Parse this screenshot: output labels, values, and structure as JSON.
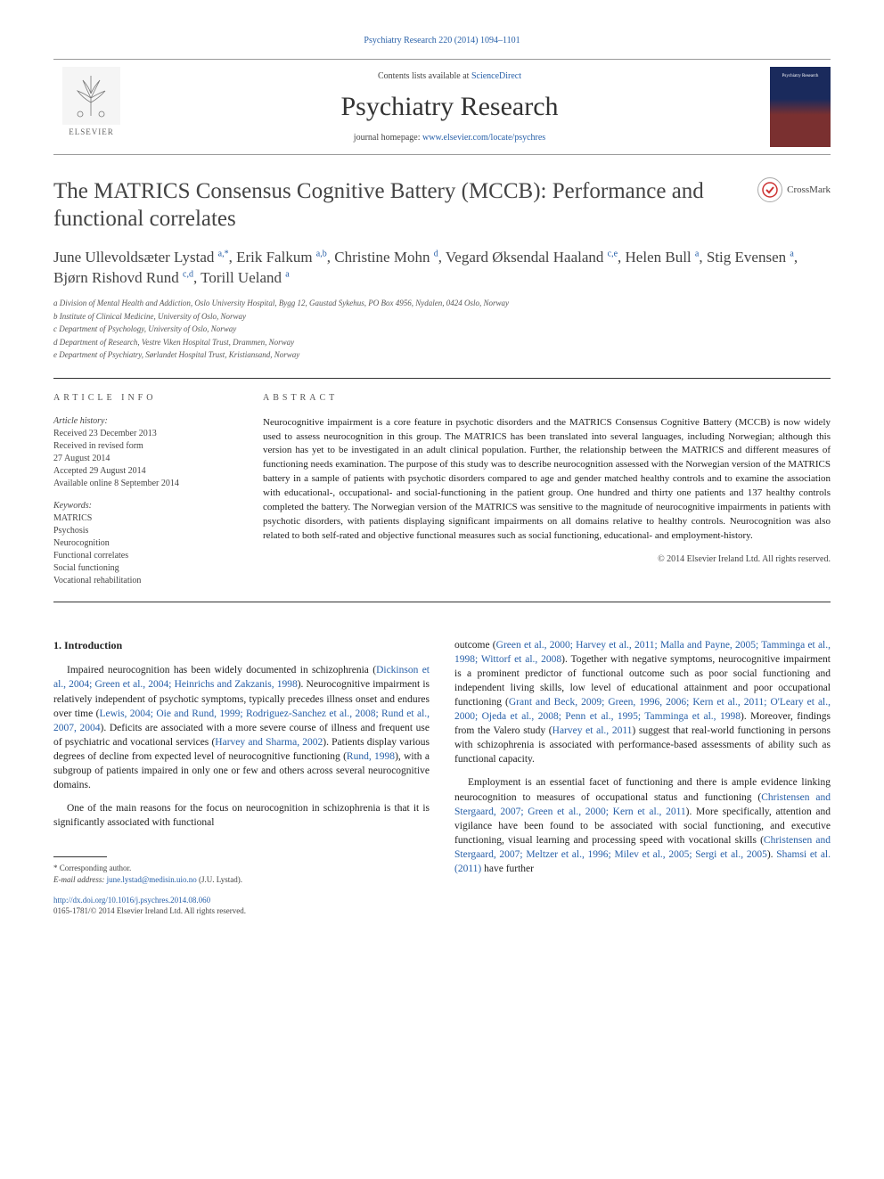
{
  "top_link": "Psychiatry Research 220 (2014) 1094–1101",
  "header": {
    "contents_prefix": "Contents lists available at ",
    "contents_link": "ScienceDirect",
    "journal_title": "Psychiatry Research",
    "homepage_prefix": "journal homepage: ",
    "homepage_link": "www.elsevier.com/locate/psychres",
    "elsevier_label": "ELSEVIER",
    "cover_text": "Psychiatry Research"
  },
  "crossmark_label": "CrossMark",
  "article_title": "The MATRICS Consensus Cognitive Battery (MCCB): Performance and functional correlates",
  "authors_html": "June Ullevoldsæter Lystad <sup><a>a,</a></sup><sup class=\"star\">*</sup>, Erik Falkum <sup><a>a,b</a></sup>, Christine Mohn <sup><a>d</a></sup>, Vegard Øksendal Haaland <sup><a>c,e</a></sup>, Helen Bull <sup><a>a</a></sup>, Stig Evensen <sup><a>a</a></sup>, Bjørn Rishovd Rund <sup><a>c,d</a></sup>, Torill Ueland <sup><a>a</a></sup>",
  "affiliations": [
    "a Division of Mental Health and Addiction, Oslo University Hospital, Bygg 12, Gaustad Sykehus, PO Box 4956, Nydalen, 0424 Oslo, Norway",
    "b Institute of Clinical Medicine, University of Oslo, Norway",
    "c Department of Psychology, University of Oslo, Norway",
    "d Department of Research, Vestre Viken Hospital Trust, Drammen, Norway",
    "e Department of Psychiatry, Sørlandet Hospital Trust, Kristiansand, Norway"
  ],
  "info": {
    "label": "ARTICLE INFO",
    "history_label": "Article history:",
    "history": [
      "Received 23 December 2013",
      "Received in revised form",
      "27 August 2014",
      "Accepted 29 August 2014",
      "Available online 8 September 2014"
    ],
    "keywords_label": "Keywords:",
    "keywords": [
      "MATRICS",
      "Psychosis",
      "Neurocognition",
      "Functional correlates",
      "Social functioning",
      "Vocational rehabilitation"
    ]
  },
  "abstract": {
    "label": "ABSTRACT",
    "text": "Neurocognitive impairment is a core feature in psychotic disorders and the MATRICS Consensus Cognitive Battery (MCCB) is now widely used to assess neurocognition in this group. The MATRICS has been translated into several languages, including Norwegian; although this version has yet to be investigated in an adult clinical population. Further, the relationship between the MATRICS and different measures of functioning needs examination. The purpose of this study was to describe neurocognition assessed with the Norwegian version of the MATRICS battery in a sample of patients with psychotic disorders compared to age and gender matched healthy controls and to examine the association with educational-, occupational- and social-functioning in the patient group. One hundred and thirty one patients and 137 healthy controls completed the battery. The Norwegian version of the MATRICS was sensitive to the magnitude of neurocognitive impairments in patients with psychotic disorders, with patients displaying significant impairments on all domains relative to healthy controls. Neurocognition was also related to both self-rated and objective functional measures such as social functioning, educational- and employment-history.",
    "copyright": "© 2014 Elsevier Ireland Ltd. All rights reserved."
  },
  "body": {
    "heading": "1.  Introduction",
    "left": {
      "p1_html": "Impaired neurocognition has been widely documented in schizophrenia (<a>Dickinson et al., 2004; Green et al., 2004; Heinrichs and Zakzanis, 1998</a>). Neurocognitive impairment is relatively independent of psychotic symptoms, typically precedes illness onset and endures over time (<a>Lewis, 2004; Oie and Rund, 1999; Rodriguez-Sanchez et al., 2008; Rund et al., 2007, 2004</a>). Deficits are associated with a more severe course of illness and frequent use of psychiatric and vocational services (<a>Harvey and Sharma, 2002</a>). Patients display various degrees of decline from expected level of neurocognitive functioning (<a>Rund, 1998</a>), with a subgroup of patients impaired in only one or few and others across several neurocognitive domains.",
      "p2_html": "One of the main reasons for the focus on neurocognition in schizophrenia is that it is significantly associated with functional"
    },
    "right": {
      "p1_html": "outcome (<a>Green et al., 2000; Harvey et al., 2011; Malla and Payne, 2005; Tamminga et al., 1998; Wittorf et al., 2008</a>). Together with negative symptoms, neurocognitive impairment is a prominent predictor of functional outcome such as poor social functioning and independent living skills, low level of educational attainment and poor occupational functioning (<a>Grant and Beck, 2009; Green, 1996, 2006; Kern et al., 2011; O'Leary et al., 2000; Ojeda et al., 2008; Penn et al., 1995; Tamminga et al., 1998</a>). Moreover, findings from the Valero study (<a>Harvey et al., 2011</a>) suggest that real-world functioning in persons with schizophrenia is associated with performance-based assessments of ability such as functional capacity.",
      "p2_html": "Employment is an essential facet of functioning and there is ample evidence linking neurocognition to measures of occupational status and functioning (<a>Christensen and Stergaard, 2007; Green et al., 2000; Kern et al., 2011</a>). More specifically, attention and vigilance have been found to be associated with social functioning, and executive functioning, visual learning and processing speed with vocational skills (<a>Christensen and Stergaard, 2007; Meltzer et al., 1996; Milev et al., 2005; Sergi et al., 2005</a>). <a>Shamsi et al. (2011)</a> have further"
    }
  },
  "footnote": {
    "corr_label": "* Corresponding author.",
    "email_label": "E-mail address: ",
    "email": "june.lystad@medisin.uio.no",
    "email_suffix": " (J.U. Lystad).",
    "doi": "http://dx.doi.org/10.1016/j.psychres.2014.08.060",
    "issn": "0165-1781/© 2014 Elsevier Ireland Ltd. All rights reserved."
  }
}
